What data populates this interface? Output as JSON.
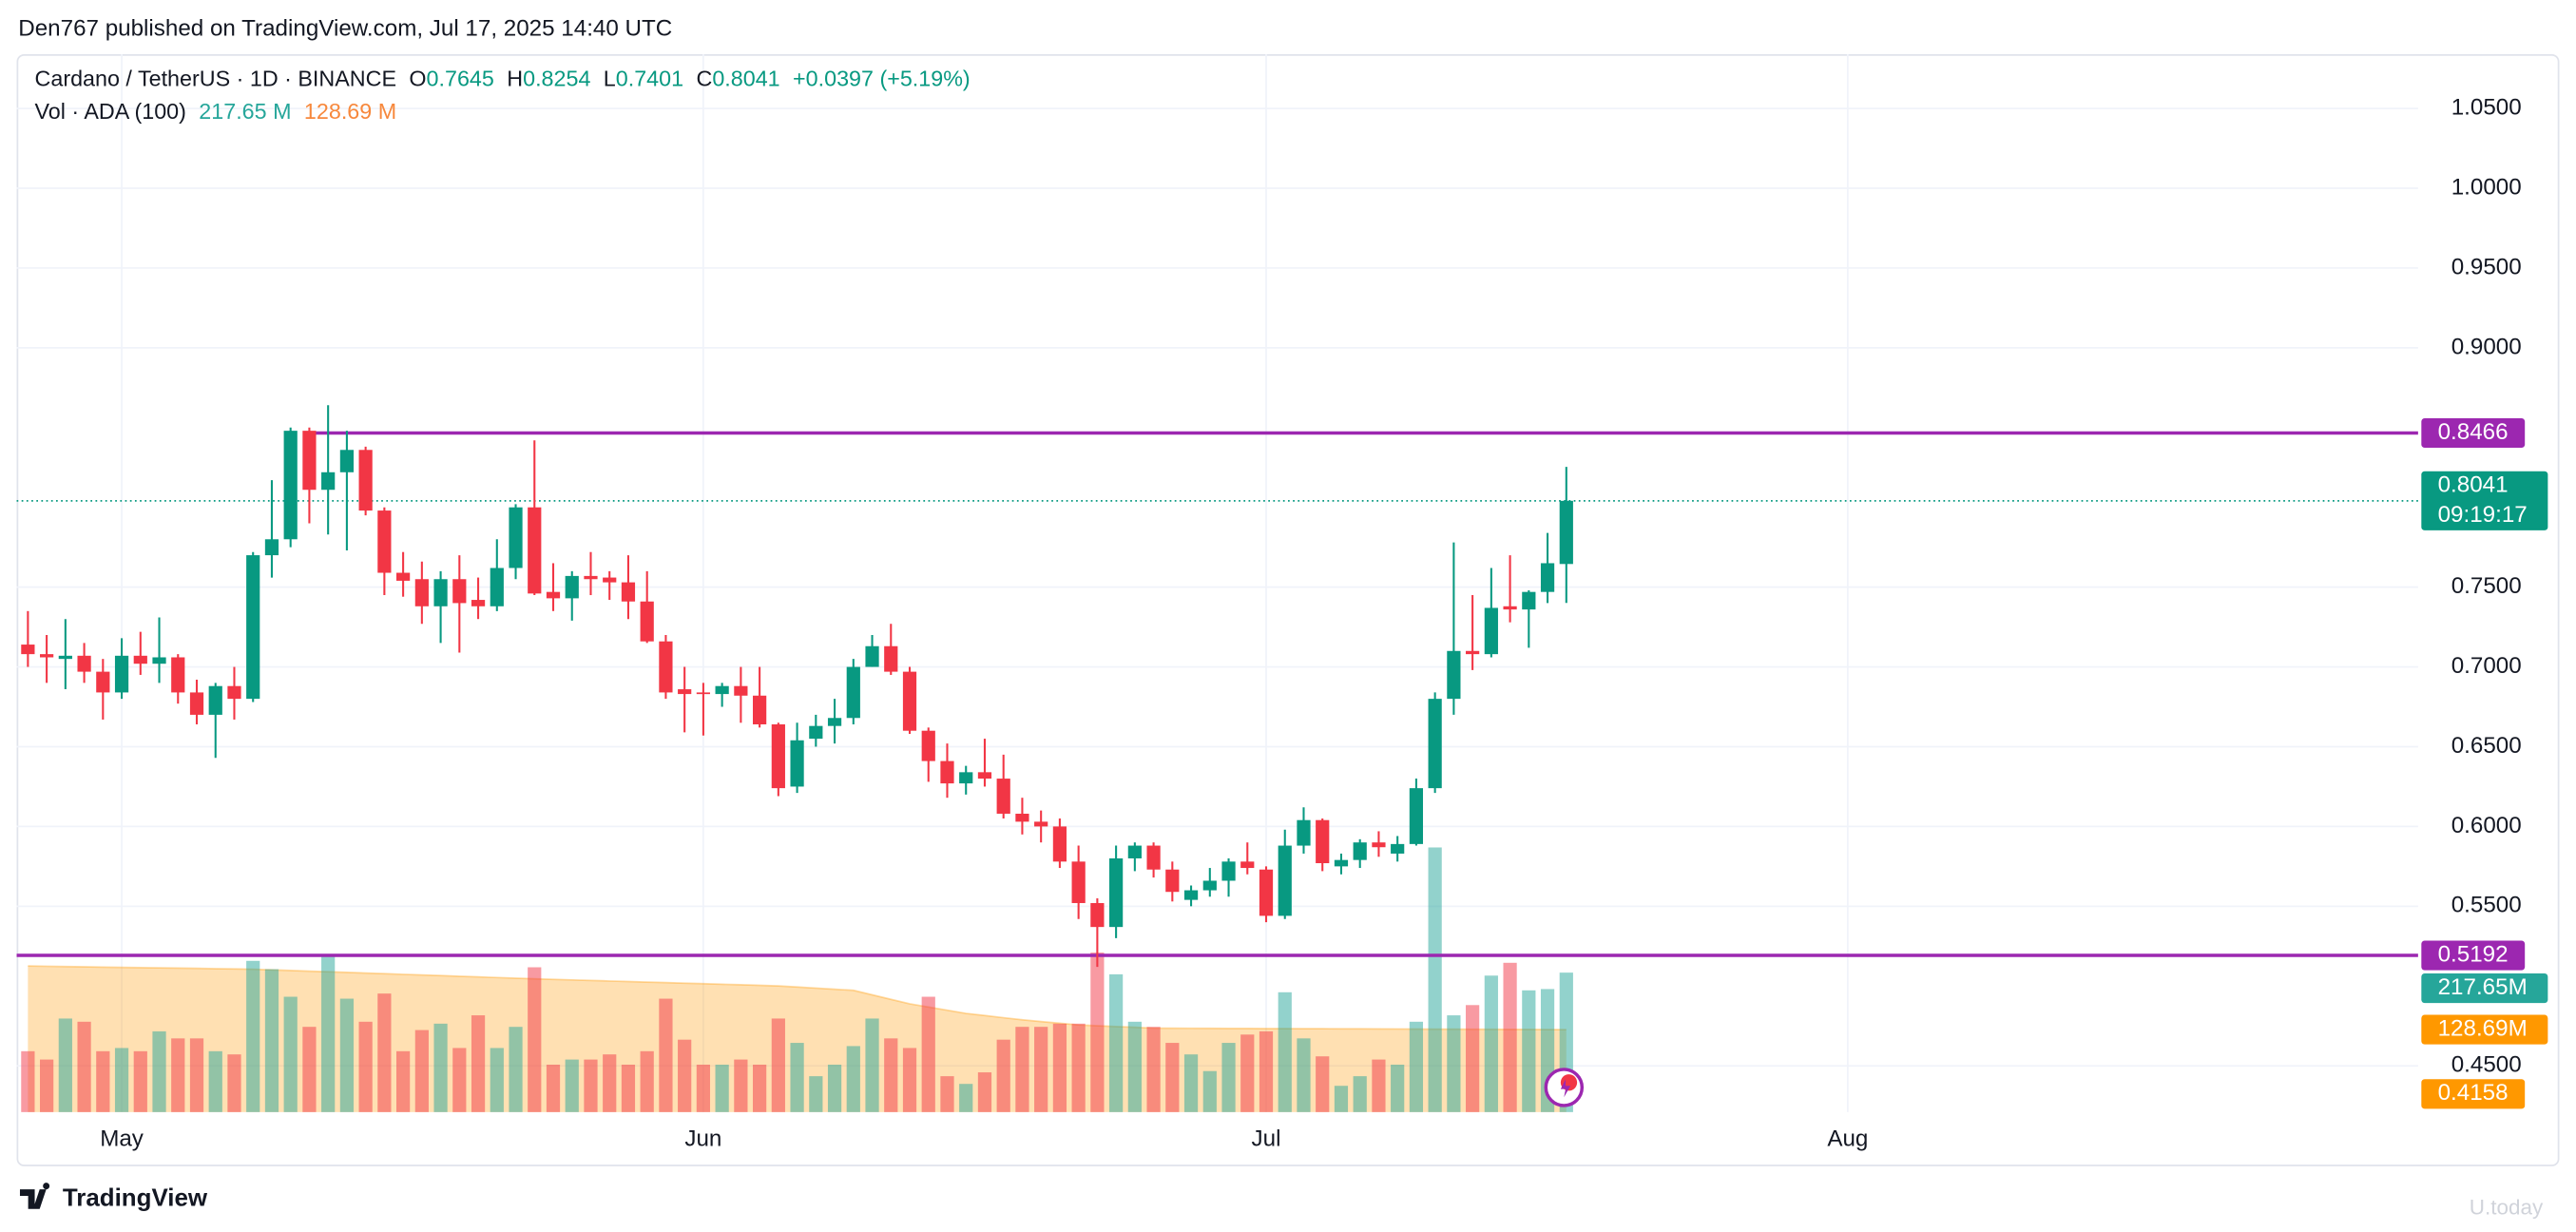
{
  "chart_data": {
    "type": "candlestick",
    "published": "Den767 published on TradingView.com, Jul 17, 2025 14:40 UTC",
    "symbol": "Cardano / TetherUS · 1D · BINANCE",
    "ohlc_letters": [
      "O",
      "H",
      "L",
      "C"
    ],
    "change": "+0.0397 (+5.19%)",
    "open": [
      0.714,
      0.708,
      0.705,
      0.707,
      0.697,
      0.684,
      0.707,
      0.702,
      0.706,
      0.684,
      0.67,
      0.688,
      0.68,
      0.77,
      0.78,
      0.848,
      0.811,
      0.822,
      0.836,
      0.798,
      0.759,
      0.755,
      0.738,
      0.755,
      0.742,
      0.738,
      0.762,
      0.8,
      0.747,
      0.743,
      0.757,
      0.756,
      0.753,
      0.741,
      0.716,
      0.686,
      0.684,
      0.683,
      0.688,
      0.682,
      0.664,
      0.625,
      0.655,
      0.663,
      0.668,
      0.7,
      0.713,
      0.697,
      0.66,
      0.641,
      0.627,
      0.634,
      0.63,
      0.608,
      0.603,
      0.6,
      0.578,
      0.552,
      0.537,
      0.58,
      0.588,
      0.573,
      0.554,
      0.56,
      0.566,
      0.578,
      0.573,
      0.544,
      0.588,
      0.604,
      0.575,
      0.579,
      0.59,
      0.583,
      0.589,
      0.624,
      0.68,
      0.71,
      0.708,
      0.738,
      0.736,
      0.747,
      0.7645
    ],
    "high": [
      0.735,
      0.72,
      0.73,
      0.715,
      0.705,
      0.718,
      0.722,
      0.731,
      0.708,
      0.692,
      0.69,
      0.7,
      0.772,
      0.817,
      0.85,
      0.85,
      0.864,
      0.848,
      0.838,
      0.8,
      0.772,
      0.766,
      0.76,
      0.77,
      0.756,
      0.78,
      0.802,
      0.842,
      0.765,
      0.76,
      0.772,
      0.76,
      0.77,
      0.76,
      0.72,
      0.7,
      0.69,
      0.69,
      0.7,
      0.7,
      0.665,
      0.665,
      0.67,
      0.68,
      0.705,
      0.72,
      0.727,
      0.7,
      0.662,
      0.652,
      0.638,
      0.655,
      0.645,
      0.618,
      0.61,
      0.605,
      0.588,
      0.555,
      0.588,
      0.59,
      0.59,
      0.578,
      0.563,
      0.574,
      0.58,
      0.59,
      0.575,
      0.598,
      0.612,
      0.605,
      0.583,
      0.592,
      0.597,
      0.594,
      0.63,
      0.684,
      0.778,
      0.745,
      0.762,
      0.77,
      0.748,
      0.784,
      0.8254
    ],
    "low": [
      0.7,
      0.69,
      0.686,
      0.69,
      0.667,
      0.68,
      0.695,
      0.69,
      0.677,
      0.664,
      0.643,
      0.667,
      0.678,
      0.756,
      0.775,
      0.79,
      0.783,
      0.773,
      0.795,
      0.745,
      0.744,
      0.727,
      0.715,
      0.709,
      0.73,
      0.735,
      0.755,
      0.745,
      0.735,
      0.729,
      0.745,
      0.742,
      0.73,
      0.715,
      0.68,
      0.659,
      0.657,
      0.675,
      0.665,
      0.662,
      0.619,
      0.621,
      0.65,
      0.652,
      0.664,
      0.7,
      0.695,
      0.658,
      0.628,
      0.618,
      0.62,
      0.625,
      0.605,
      0.595,
      0.59,
      0.574,
      0.542,
      0.512,
      0.53,
      0.572,
      0.568,
      0.553,
      0.55,
      0.556,
      0.556,
      0.57,
      0.54,
      0.542,
      0.583,
      0.572,
      0.57,
      0.574,
      0.581,
      0.578,
      0.588,
      0.621,
      0.67,
      0.698,
      0.706,
      0.728,
      0.712,
      0.74,
      0.7401
    ],
    "close": [
      0.708,
      0.706,
      0.707,
      0.697,
      0.684,
      0.707,
      0.702,
      0.706,
      0.684,
      0.67,
      0.688,
      0.68,
      0.77,
      0.78,
      0.848,
      0.811,
      0.822,
      0.836,
      0.798,
      0.759,
      0.754,
      0.738,
      0.755,
      0.74,
      0.738,
      0.762,
      0.8,
      0.746,
      0.743,
      0.757,
      0.755,
      0.753,
      0.741,
      0.716,
      0.684,
      0.683,
      0.683,
      0.688,
      0.682,
      0.664,
      0.624,
      0.654,
      0.663,
      0.668,
      0.7,
      0.713,
      0.697,
      0.66,
      0.641,
      0.627,
      0.634,
      0.63,
      0.608,
      0.603,
      0.6,
      0.578,
      0.552,
      0.537,
      0.58,
      0.588,
      0.573,
      0.559,
      0.56,
      0.566,
      0.578,
      0.574,
      0.544,
      0.588,
      0.604,
      0.577,
      0.579,
      0.59,
      0.587,
      0.589,
      0.624,
      0.68,
      0.71,
      0.708,
      0.737,
      0.736,
      0.747,
      0.765,
      0.8041
    ],
    "up_color": "#089981",
    "down_color": "#f23645",
    "xlim": [
      -0.6,
      127.4
    ],
    "xticks": [
      {
        "value": 5,
        "label": "May"
      },
      {
        "value": 36,
        "label": "Jun"
      },
      {
        "value": 66,
        "label": "Jul"
      },
      {
        "value": 97,
        "label": "Aug"
      }
    ],
    "ylim": [
      0.421,
      1.084
    ],
    "yticks": [
      {
        "value": 1.05,
        "label": "1.0500"
      },
      {
        "value": 1.0,
        "label": "1.0000"
      },
      {
        "value": 0.95,
        "label": "0.9500"
      },
      {
        "value": 0.9,
        "label": "0.9000"
      },
      {
        "value": 0.75,
        "label": "0.7500"
      },
      {
        "value": 0.7,
        "label": "0.7000"
      },
      {
        "value": 0.65,
        "label": "0.6500"
      },
      {
        "value": 0.6,
        "label": "0.6000"
      },
      {
        "value": 0.55,
        "label": "0.5500"
      },
      {
        "value": 0.45,
        "label": "0.4500"
      }
    ],
    "grid": true,
    "volume": {
      "name": "Vol · ADA (100)",
      "values": [
        95,
        82,
        146,
        141,
        95,
        100,
        95,
        126,
        115,
        115,
        95,
        90,
        236,
        223,
        180,
        133,
        244,
        177,
        141,
        185,
        95,
        128,
        138,
        100,
        151,
        100,
        133,
        226,
        74,
        82,
        82,
        90,
        74,
        95,
        177,
        113,
        74,
        74,
        82,
        74,
        146,
        108,
        56,
        74,
        103,
        146,
        115,
        100,
        180,
        56,
        44,
        62,
        113,
        133,
        133,
        138,
        138,
        249,
        215,
        141,
        133,
        108,
        90,
        64,
        108,
        121,
        126,
        187,
        115,
        87,
        41,
        56,
        82,
        74,
        141,
        413,
        151,
        167,
        213,
        233,
        190,
        192,
        217.65
      ],
      "ma_values": [
        228,
        227.6,
        227.2,
        226.8,
        226.3,
        225.9,
        225.5,
        225.1,
        224.7,
        224.3,
        223.8,
        223.4,
        223,
        222,
        221,
        220,
        219,
        218,
        217,
        216,
        215,
        214,
        213,
        212,
        211,
        210,
        209,
        208,
        207.2,
        206.3,
        205.5,
        204.6,
        203.8,
        202.9,
        202.1,
        201.2,
        200.4,
        199.5,
        198.7,
        197.8,
        197,
        195.3,
        193.5,
        191.8,
        190,
        183,
        176,
        169,
        164,
        159,
        154,
        150.7,
        147.3,
        144,
        141.3,
        138.7,
        136,
        134.8,
        133.5,
        132.3,
        131,
        130.9,
        130.8,
        130.7,
        130.6,
        130.5,
        130.4,
        130.3,
        130.2,
        130.1,
        130,
        129.9,
        129.8,
        129.7,
        129.6,
        129.5,
        129.4,
        129.3,
        129.2,
        129.1,
        129,
        128.9,
        128.69
      ],
      "lim": [
        0,
        1651
      ],
      "legend_label": "217.65 M",
      "tag_label": "217.65M",
      "ma_legend_label": "128.69 M",
      "ma_tag_label": "128.69M",
      "color": "#26a69a",
      "ma_color": "#ff9800"
    },
    "hlines": [
      {
        "value": 0.8466,
        "color": "#9c27b0",
        "from": 15
      },
      {
        "value": 0.5192,
        "color": "#9c27b0"
      }
    ],
    "countdown": "09:19:17",
    "extra_tag": {
      "value": 0.4158,
      "color": "#ff9800"
    },
    "brand": "TradingView",
    "watermark": "U.today"
  }
}
